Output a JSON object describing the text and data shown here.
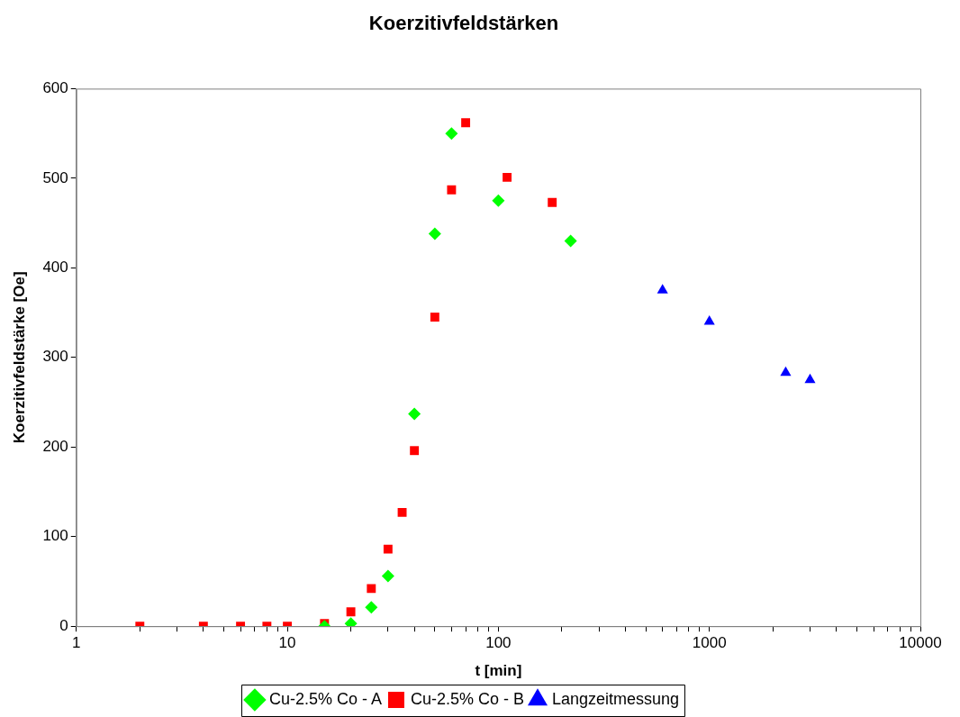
{
  "chart_data": {
    "type": "scatter",
    "title": "Koerzitivfeldstärken",
    "xlabel": "t [min]",
    "ylabel": "Koerzitivfeldstärke [Oe]",
    "log": "x",
    "grid": false,
    "legend": "bottom",
    "xlim": [
      1,
      10000
    ],
    "xticks": [
      1,
      {
        "value": 2,
        "label": null
      },
      {
        "value": 3,
        "label": null
      },
      {
        "value": 4,
        "label": null
      },
      {
        "value": 5,
        "label": null
      },
      {
        "value": 6,
        "label": null
      },
      {
        "value": 7,
        "label": null
      },
      {
        "value": 8,
        "label": null
      },
      {
        "value": 9,
        "label": null
      },
      10,
      {
        "value": 20,
        "label": null
      },
      {
        "value": 30,
        "label": null
      },
      {
        "value": 40,
        "label": null
      },
      {
        "value": 50,
        "label": null
      },
      {
        "value": 60,
        "label": null
      },
      {
        "value": 70,
        "label": null
      },
      {
        "value": 80,
        "label": null
      },
      {
        "value": 90,
        "label": null
      },
      100,
      {
        "value": 200,
        "label": null
      },
      {
        "value": 300,
        "label": null
      },
      {
        "value": 400,
        "label": null
      },
      {
        "value": 500,
        "label": null
      },
      {
        "value": 600,
        "label": null
      },
      {
        "value": 700,
        "label": null
      },
      {
        "value": 800,
        "label": null
      },
      {
        "value": 900,
        "label": null
      },
      1000,
      {
        "value": 2000,
        "label": null
      },
      {
        "value": 3000,
        "label": null
      },
      {
        "value": 4000,
        "label": null
      },
      {
        "value": 5000,
        "label": null
      },
      {
        "value": 6000,
        "label": null
      },
      {
        "value": 7000,
        "label": null
      },
      {
        "value": 8000,
        "label": null
      },
      {
        "value": 9000,
        "label": null
      },
      10000
    ],
    "ylim": [
      0,
      600
    ],
    "yticks": [
      0,
      100,
      200,
      300,
      400,
      500,
      600
    ],
    "series": [
      {
        "name": "Cu-2.5% Co - A",
        "color": "#00ff00",
        "marker": "diamond",
        "x": [
          15,
          20,
          25,
          30,
          40,
          50,
          60,
          100,
          220
        ],
        "values": [
          0,
          3,
          21,
          56,
          237,
          438,
          550,
          475,
          430
        ]
      },
      {
        "name": "Cu-2.5% Co - B",
        "color": "#ff0000",
        "marker": "square",
        "x": [
          2,
          4,
          6,
          8,
          10,
          15,
          20,
          25,
          30,
          35,
          40,
          50,
          60,
          70,
          110,
          180
        ],
        "values": [
          0,
          0,
          0,
          0,
          0,
          3,
          16,
          42,
          86,
          127,
          196,
          345,
          487,
          562,
          501,
          473
        ]
      },
      {
        "name": "Langzeitmessung",
        "color": "#0000ff",
        "marker": "triangle",
        "x": [
          600,
          1000,
          2300,
          3000
        ],
        "values": [
          375,
          340,
          283,
          275
        ]
      }
    ]
  }
}
